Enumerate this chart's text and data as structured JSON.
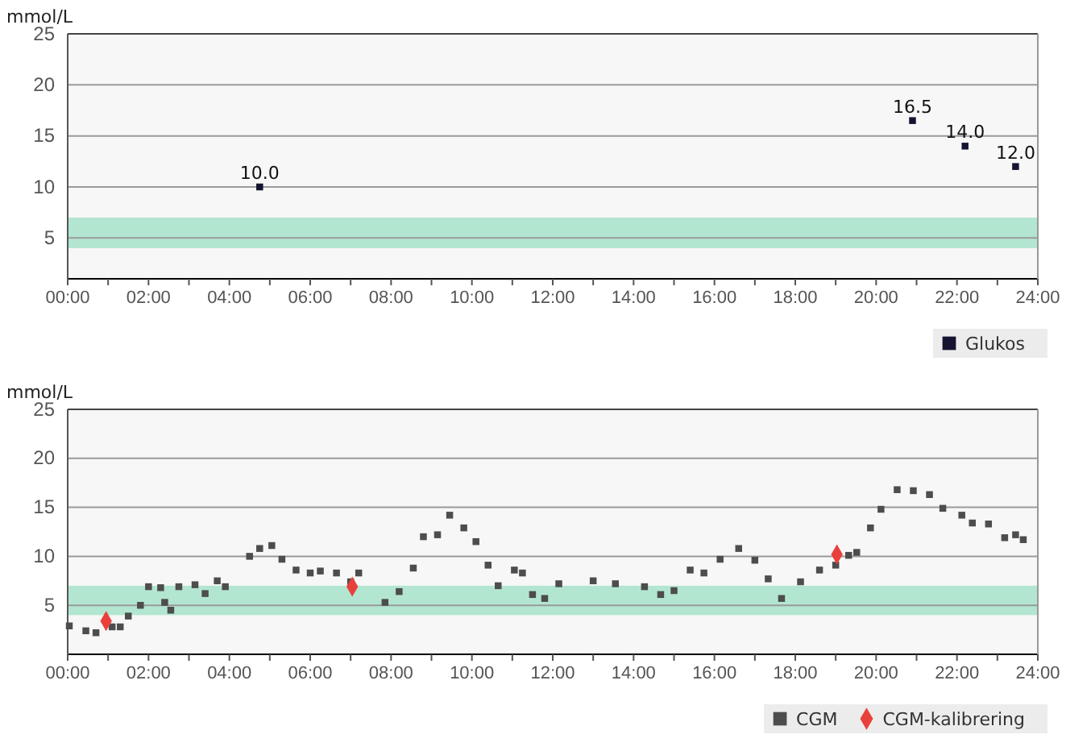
{
  "chart_data": [
    {
      "type": "scatter",
      "ylabel": "mmol/L",
      "xlim": [
        0,
        24
      ],
      "ylim": [
        1,
        25
      ],
      "xticks": [
        {
          "value": 0,
          "label": "00:00"
        },
        {
          "value": 1,
          "label": null
        },
        {
          "value": 2,
          "label": "02:00"
        },
        {
          "value": 3,
          "label": null
        },
        {
          "value": 4,
          "label": "04:00"
        },
        {
          "value": 5,
          "label": null
        },
        {
          "value": 6,
          "label": "06:00"
        },
        {
          "value": 7,
          "label": null
        },
        {
          "value": 8,
          "label": "08:00"
        },
        {
          "value": 9,
          "label": null
        },
        {
          "value": 10,
          "label": "10:00"
        },
        {
          "value": 11,
          "label": null
        },
        {
          "value": 12,
          "label": "12:00"
        },
        {
          "value": 13,
          "label": null
        },
        {
          "value": 14,
          "label": "14:00"
        },
        {
          "value": 15,
          "label": null
        },
        {
          "value": 16,
          "label": "16:00"
        },
        {
          "value": 17,
          "label": null
        },
        {
          "value": 18,
          "label": "18:00"
        },
        {
          "value": 19,
          "label": null
        },
        {
          "value": 20,
          "label": "20:00"
        },
        {
          "value": 21,
          "label": null
        },
        {
          "value": 22,
          "label": "22:00"
        },
        {
          "value": 23,
          "label": null
        },
        {
          "value": 24,
          "label": "24:00"
        }
      ],
      "yticks": [
        5,
        10,
        15,
        20,
        25
      ],
      "grid": "y",
      "legend": "bottom right",
      "bands": [
        {
          "axis": "y",
          "from": 4,
          "to": 7,
          "color": "#b3e6d1"
        }
      ],
      "series": [
        {
          "name": "Glukos",
          "color": "#141432",
          "marker": "square",
          "x": [
            4.75,
            20.9,
            22.2,
            23.45
          ],
          "values": [
            10,
            16.5,
            14,
            12
          ],
          "value_labels": [
            "10.0",
            "16.5",
            "14.0",
            "12.0"
          ]
        }
      ]
    },
    {
      "type": "scatter",
      "ylabel": "mmol/L",
      "xlim": [
        0,
        24
      ],
      "ylim": [
        0,
        25
      ],
      "xticks": [
        {
          "value": 0,
          "label": "00:00"
        },
        {
          "value": 1,
          "label": null
        },
        {
          "value": 2,
          "label": "02:00"
        },
        {
          "value": 3,
          "label": null
        },
        {
          "value": 4,
          "label": "04:00"
        },
        {
          "value": 5,
          "label": null
        },
        {
          "value": 6,
          "label": "06:00"
        },
        {
          "value": 7,
          "label": null
        },
        {
          "value": 8,
          "label": "08:00"
        },
        {
          "value": 9,
          "label": null
        },
        {
          "value": 10,
          "label": "10:00"
        },
        {
          "value": 11,
          "label": null
        },
        {
          "value": 12,
          "label": "12:00"
        },
        {
          "value": 13,
          "label": null
        },
        {
          "value": 14,
          "label": "14:00"
        },
        {
          "value": 15,
          "label": null
        },
        {
          "value": 16,
          "label": "16:00"
        },
        {
          "value": 17,
          "label": null
        },
        {
          "value": 18,
          "label": "18:00"
        },
        {
          "value": 19,
          "label": null
        },
        {
          "value": 20,
          "label": "20:00"
        },
        {
          "value": 21,
          "label": null
        },
        {
          "value": 22,
          "label": "22:00"
        },
        {
          "value": 23,
          "label": null
        },
        {
          "value": 24,
          "label": "24:00"
        }
      ],
      "yticks": [
        5,
        10,
        15,
        20,
        25
      ],
      "grid": "y",
      "legend": "bottom right",
      "bands": [
        {
          "axis": "y",
          "from": 4,
          "to": 7,
          "color": "#b3e6d1"
        }
      ],
      "series": [
        {
          "name": "CGM",
          "color": "#4d4d4d",
          "marker": "square",
          "x": [
            0.04,
            0.45,
            0.7,
            1.1,
            1.3,
            1.5,
            1.8,
            2.0,
            2.3,
            2.4,
            2.55,
            2.75,
            3.15,
            3.4,
            3.7,
            3.9,
            4.5,
            4.75,
            5.05,
            5.3,
            5.65,
            6.0,
            6.25,
            6.65,
            7.0,
            7.2,
            7.85,
            8.2,
            8.55,
            8.8,
            9.15,
            9.45,
            9.8,
            10.1,
            10.4,
            10.65,
            11.05,
            11.25,
            11.5,
            11.8,
            12.15,
            13.0,
            13.55,
            14.27,
            14.67,
            15.0,
            15.4,
            15.74,
            16.14,
            16.6,
            17.0,
            17.33,
            17.66,
            18.13,
            18.6,
            19.0,
            19.32,
            19.52,
            19.86,
            20.12,
            20.52,
            20.92,
            21.32,
            21.65,
            22.12,
            22.38,
            22.78,
            23.18,
            23.45,
            23.64
          ],
          "values": [
            2.9,
            2.4,
            2.2,
            2.8,
            2.8,
            3.9,
            5.0,
            6.9,
            6.8,
            5.3,
            4.5,
            6.9,
            7.1,
            6.2,
            7.5,
            6.9,
            10.0,
            10.8,
            11.1,
            9.7,
            8.6,
            8.3,
            8.5,
            8.3,
            7.4,
            8.3,
            5.3,
            6.4,
            8.8,
            12.0,
            12.2,
            14.2,
            12.9,
            11.5,
            9.1,
            7.0,
            8.6,
            8.3,
            6.1,
            5.7,
            7.2,
            7.5,
            7.2,
            6.9,
            6.1,
            6.5,
            8.6,
            8.3,
            9.7,
            10.8,
            9.6,
            7.7,
            5.7,
            7.4,
            8.6,
            9.1,
            10.1,
            10.4,
            12.9,
            14.8,
            16.8,
            16.7,
            16.3,
            14.9,
            14.2,
            13.4,
            13.3,
            11.9,
            12.2,
            11.7
          ]
        },
        {
          "name": "CGM-kalibrering",
          "color": "#e8413c",
          "marker": "diamond",
          "x": [
            0.95,
            7.04,
            19.03
          ],
          "values": [
            3.4,
            6.9,
            10.2
          ]
        }
      ]
    }
  ]
}
